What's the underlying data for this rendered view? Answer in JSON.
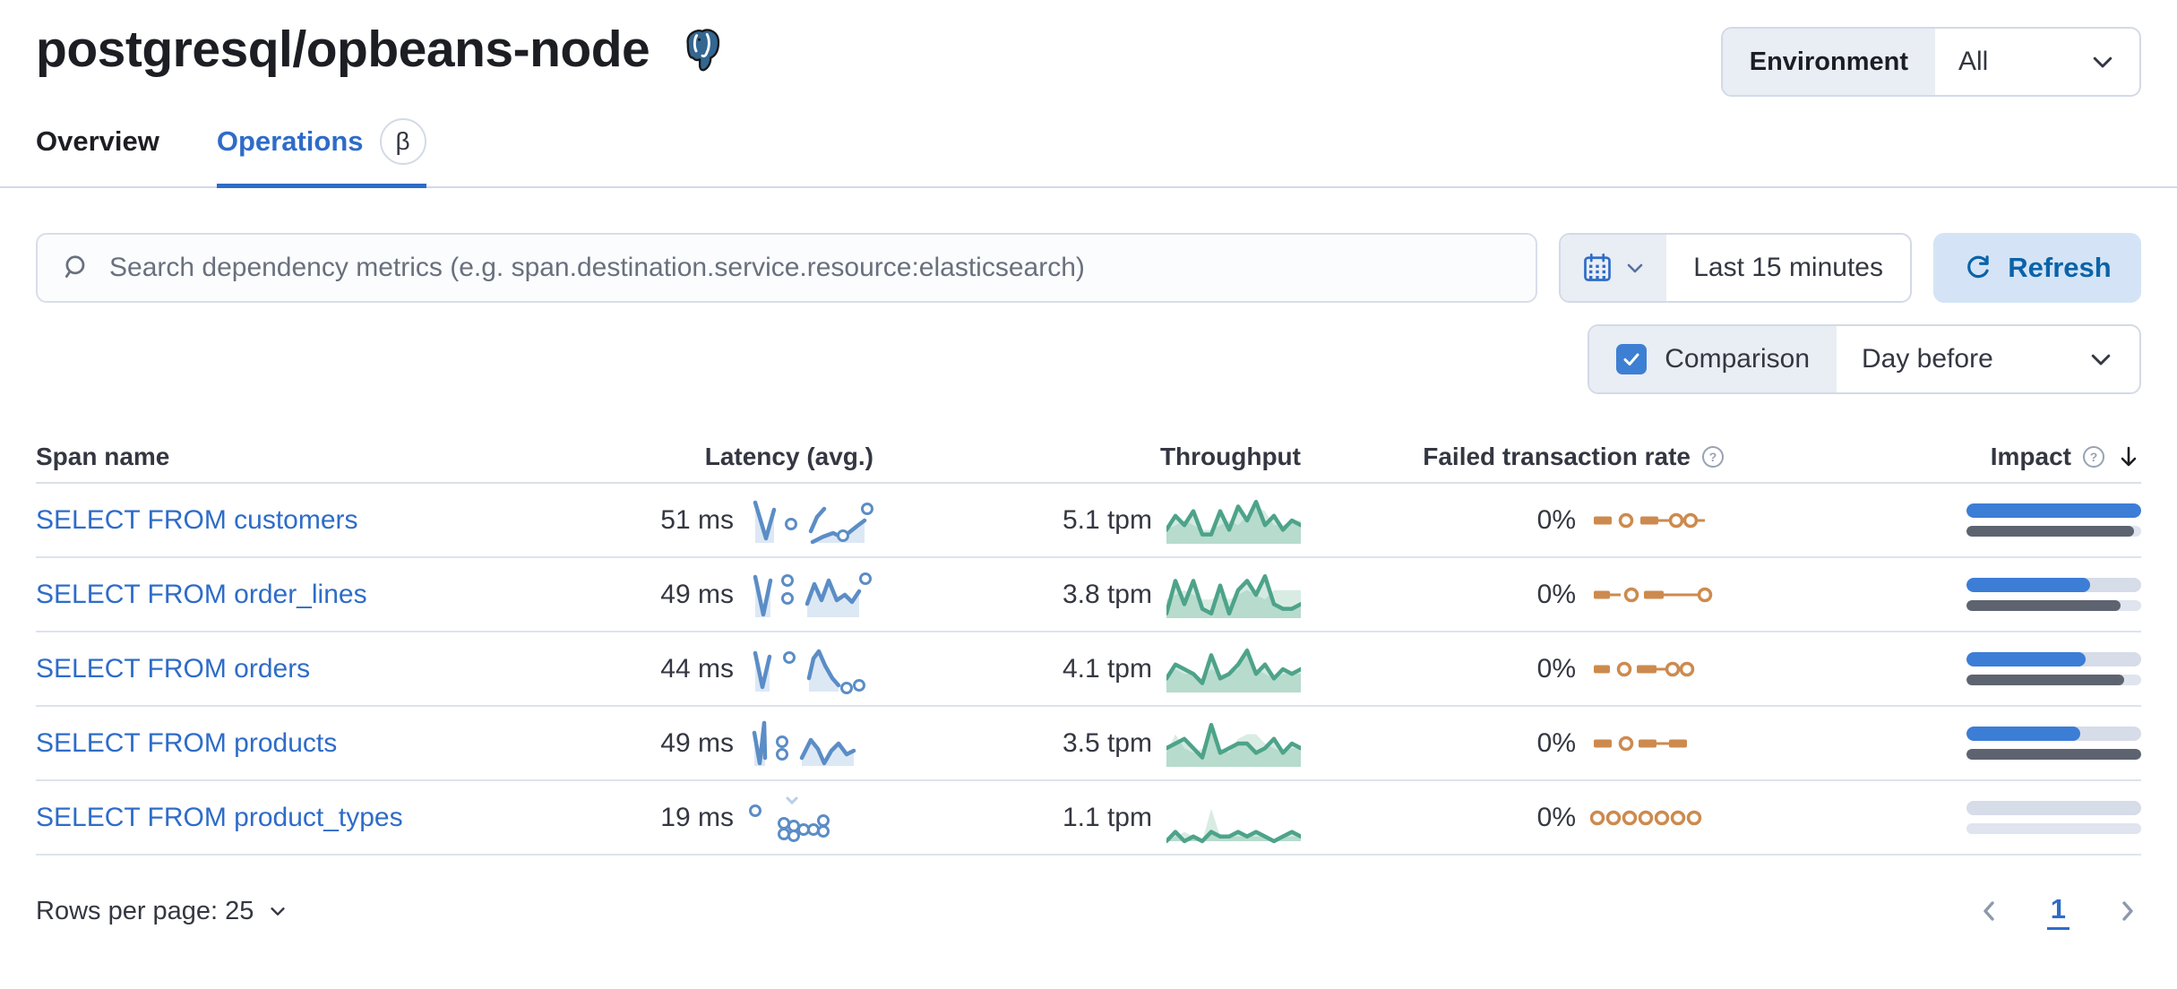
{
  "page": {
    "title": "postgresql/opbeans-node"
  },
  "environment": {
    "label": "Environment",
    "value": "All"
  },
  "tabs": [
    {
      "label": "Overview",
      "active": false
    },
    {
      "label": "Operations",
      "active": true,
      "badge": "β"
    }
  ],
  "search": {
    "placeholder": "Search dependency metrics (e.g. span.destination.service.resource:elasticsearch)"
  },
  "time_picker": {
    "value": "Last 15 minutes",
    "refresh_label": "Refresh"
  },
  "comparison": {
    "label": "Comparison",
    "checked": true,
    "value": "Day before"
  },
  "colors": {
    "primary_blue": "#2e6cc8",
    "latency_blue": "#5b8dc6",
    "latency_fill": "#dde8f5",
    "throughput_green": "#4da389",
    "throughput_prev_fill": "#d9ece3",
    "failed_orange": "#cd8a4e",
    "impact_current": "#3c7dd6",
    "impact_previous": "#5d6470",
    "track_gray": "#d6dce8"
  },
  "table": {
    "columns": [
      "Span name",
      "Latency (avg.)",
      "Throughput",
      "Failed transaction rate",
      "Impact"
    ],
    "rows": [
      {
        "name": "SELECT FROM customers",
        "latency": "51 ms",
        "throughput": "5.1 tpm",
        "failed_rate": "0%",
        "impact": 100,
        "impact_prev": 96,
        "latency_spark": {
          "segments": [
            {
              "pts": [
                [
                  8,
                  8
                ],
                [
                  20,
                  48
                ],
                [
                  29,
                  16
                ]
              ],
              "fill": true
            },
            {
              "pts": [
                [
                  70,
                  40
                ],
                [
                  77,
                  24
                ],
                [
                  85,
                  15
                ]
              ],
              "fill": false
            },
            {
              "pts": [
                [
                  72,
                  52
                ],
                [
                  84,
                  46
                ],
                [
                  95,
                  42
                ],
                [
                  103,
                  46
                ],
                [
                  112,
                  42
                ],
                [
                  122,
                  34
                ],
                [
                  130,
                  28
                ]
              ],
              "fill": true
            }
          ],
          "dots": [
            [
              48,
              32
            ],
            [
              106,
              45
            ],
            [
              133,
              15
            ]
          ],
          "pale_segments": []
        },
        "throughput_spark": {
          "current": [
            3,
            6,
            4,
            7,
            2,
            2,
            7,
            3,
            8,
            5,
            9,
            4,
            6,
            3,
            5,
            4
          ],
          "previous": [
            3,
            4,
            5,
            4,
            3,
            3,
            4,
            5,
            4,
            6,
            8,
            7,
            4,
            4,
            5,
            5
          ]
        },
        "failed_spark": [
          [
            "dash",
            4,
            24
          ],
          [
            "dot",
            40
          ],
          [
            "dash",
            56,
            76
          ],
          [
            "line",
            76,
            128
          ],
          [
            "dot",
            96
          ],
          [
            "dot",
            112
          ]
        ]
      },
      {
        "name": "SELECT FROM order_lines",
        "latency": "49 ms",
        "throughput": "3.8 tpm",
        "failed_rate": "0%",
        "impact": 71,
        "impact_prev": 88,
        "latency_spark": {
          "segments": [
            {
              "pts": [
                [
                  8,
                  8
                ],
                [
                  17,
                  50
                ],
                [
                  25,
                  12
                ]
              ],
              "fill": true
            },
            {
              "pts": [
                [
                  66,
                  38
                ],
                [
                  74,
                  16
                ],
                [
                  82,
                  34
                ],
                [
                  90,
                  12
                ],
                [
                  99,
                  34
                ],
                [
                  108,
                  28
                ],
                [
                  116,
                  36
                ],
                [
                  124,
                  24
                ]
              ],
              "fill": true
            }
          ],
          "dots": [
            [
              44,
              12
            ],
            [
              44,
              32
            ],
            [
              131,
              10
            ]
          ],
          "pale_segments": []
        },
        "throughput_spark": {
          "current": [
            1,
            8,
            3,
            8,
            2,
            1,
            7,
            1,
            6,
            8,
            5,
            9,
            3,
            2,
            2,
            3
          ],
          "previous": [
            4,
            5,
            6,
            5,
            4,
            4,
            5,
            4,
            5,
            6,
            5,
            4,
            6,
            6,
            6,
            6
          ]
        },
        "failed_spark": [
          [
            "dash",
            4,
            22
          ],
          [
            "line",
            22,
            34
          ],
          [
            "dot",
            46
          ],
          [
            "dash",
            60,
            82
          ],
          [
            "line",
            82,
            126
          ],
          [
            "dot",
            128
          ]
        ]
      },
      {
        "name": "SELECT FROM orders",
        "latency": "44 ms",
        "throughput": "4.1 tpm",
        "failed_rate": "0%",
        "impact": 68,
        "impact_prev": 90,
        "latency_spark": {
          "segments": [
            {
              "pts": [
                [
                  8,
                  10
                ],
                [
                  16,
                  48
                ],
                [
                  24,
                  14
                ]
              ],
              "fill": true
            },
            {
              "pts": [
                [
                  68,
                  38
                ],
                [
                  73,
                  16
                ],
                [
                  79,
                  8
                ],
                [
                  86,
                  24
                ],
                [
                  94,
                  38
                ],
                [
                  101,
                  46
                ]
              ],
              "fill": true
            }
          ],
          "dots": [
            [
              46,
              15
            ],
            [
              110,
              49
            ],
            [
              124,
              46
            ]
          ],
          "pale_segments": []
        },
        "throughput_spark": {
          "current": [
            3,
            6,
            5,
            4,
            2,
            8,
            3,
            4,
            6,
            9,
            4,
            6,
            3,
            5,
            4,
            5
          ],
          "previous": [
            3,
            5,
            4,
            4,
            3,
            5,
            4,
            4,
            5,
            10,
            5,
            4,
            3,
            4,
            4,
            4
          ]
        },
        "failed_spark": [
          [
            "dash",
            4,
            22
          ],
          [
            "dot",
            38
          ],
          [
            "dash",
            52,
            74
          ],
          [
            "line",
            74,
            84
          ],
          [
            "dot",
            92
          ],
          [
            "dot",
            108
          ]
        ]
      },
      {
        "name": "SELECT FROM products",
        "latency": "49 ms",
        "throughput": "3.5 tpm",
        "failed_rate": "0%",
        "impact": 65,
        "impact_prev": 100,
        "latency_spark": {
          "segments": [
            {
              "pts": [
                [
                  7,
                  16
                ],
                [
                  13,
                  50
                ],
                [
                  18,
                  5
                ],
                [
                  19,
                  44
                ]
              ],
              "fill": true
            },
            {
              "pts": [
                [
                  60,
                  44
                ],
                [
                  70,
                  24
                ],
                [
                  78,
                  34
                ],
                [
                  85,
                  50
                ],
                [
                  93,
                  36
                ],
                [
                  101,
                  28
                ],
                [
                  110,
                  40
                ],
                [
                  118,
                  36
                ]
              ],
              "fill": true
            }
          ],
          "dots": [
            [
              38,
              26
            ],
            [
              38,
              40
            ]
          ],
          "pale_segments": []
        },
        "throughput_spark": {
          "current": [
            4,
            5,
            6,
            4,
            2,
            9,
            3,
            4,
            5,
            5,
            3,
            4,
            6,
            3,
            5,
            4
          ],
          "previous": [
            3,
            7,
            4,
            3,
            4,
            9,
            4,
            3,
            6,
            7,
            7,
            5,
            4,
            3,
            4,
            4
          ]
        },
        "failed_spark": [
          [
            "dash",
            4,
            24
          ],
          [
            "dot",
            40
          ],
          [
            "dash",
            54,
            74
          ],
          [
            "line",
            74,
            88
          ],
          [
            "dash",
            88,
            108
          ]
        ]
      },
      {
        "name": "SELECT FROM product_types",
        "latency": "19 ms",
        "throughput": "1.1 tpm",
        "failed_rate": "0%",
        "impact": 0,
        "impact_prev": 0,
        "latency_spark": {
          "segments": [],
          "dots": [
            [
              8,
              20
            ],
            [
              40,
              34
            ],
            [
              40,
              46
            ],
            [
              51,
              37
            ],
            [
              51,
              48
            ],
            [
              62,
              41
            ],
            [
              73,
              41
            ],
            [
              84,
              31
            ],
            [
              84,
              43
            ]
          ],
          "pale_segments": [
            {
              "pts": [
                [
                  44,
                  6
                ],
                [
                  49,
                  11
                ],
                [
                  54,
                  6
                ]
              ]
            }
          ]
        },
        "throughput_spark": {
          "current": [
            0,
            2,
            0,
            1,
            0,
            2,
            1,
            1,
            2,
            1,
            2,
            1,
            0,
            1,
            2,
            1
          ],
          "previous": [
            0,
            1,
            2,
            1,
            0,
            7,
            1,
            1,
            1,
            1,
            1,
            1,
            0,
            1,
            1,
            1
          ]
        },
        "failed_spark": [
          [
            "dot",
            8
          ],
          [
            "dot",
            26
          ],
          [
            "dot",
            44
          ],
          [
            "dot",
            62
          ],
          [
            "dot",
            80
          ],
          [
            "dot",
            98
          ],
          [
            "dot",
            116
          ]
        ]
      }
    ]
  },
  "pagination": {
    "rows_per_page_label": "Rows per page: 25",
    "page": "1"
  }
}
